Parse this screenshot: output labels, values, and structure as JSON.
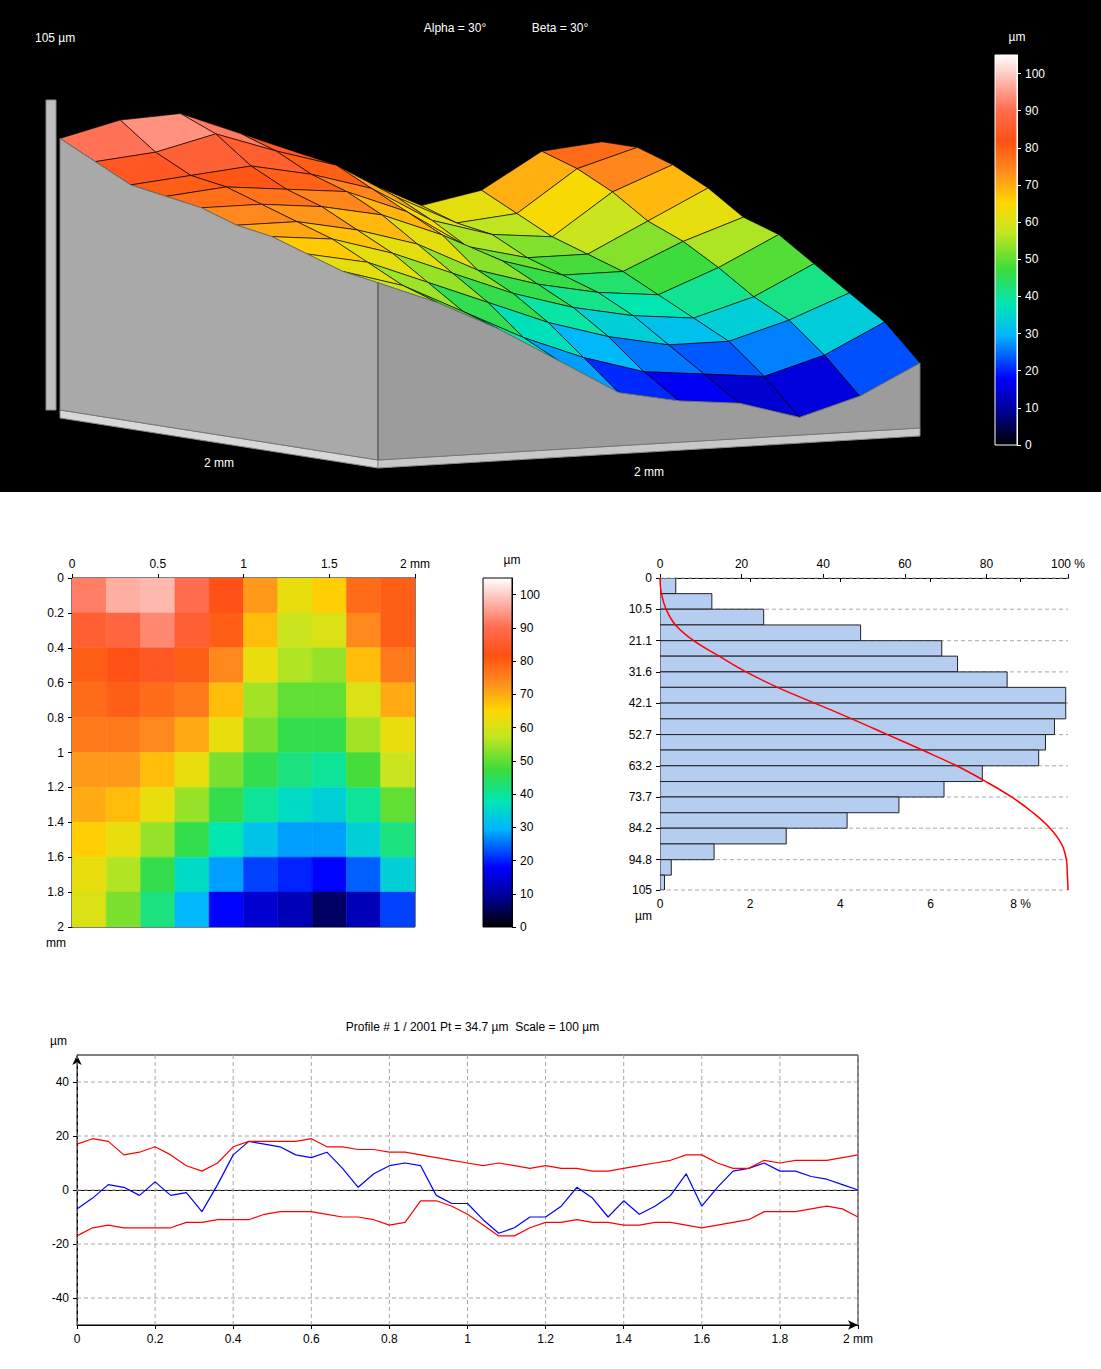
{
  "chart_data": [
    {
      "type": "surface3d",
      "annotations": [
        "Alpha = 30°",
        "Beta = 30°"
      ],
      "zlabel": "105 µm",
      "xlabel": "2 mm",
      "ylabel": "2 mm",
      "xlim": [
        0,
        2
      ],
      "ylim": [
        0,
        2
      ],
      "zlim": [
        0,
        105
      ],
      "heights": [
        [
          92,
          97,
          98,
          90,
          82,
          72,
          62,
          66,
          78,
          80
        ],
        [
          86,
          88,
          93,
          86,
          80,
          68,
          58,
          60,
          74,
          80
        ],
        [
          80,
          82,
          84,
          80,
          74,
          62,
          56,
          54,
          68,
          76
        ],
        [
          78,
          80,
          78,
          76,
          68,
          55,
          50,
          50,
          60,
          70
        ],
        [
          76,
          76,
          74,
          70,
          62,
          52,
          46,
          46,
          55,
          62
        ],
        [
          72,
          72,
          68,
          62,
          52,
          46,
          42,
          40,
          48,
          58
        ],
        [
          70,
          68,
          62,
          54,
          46,
          40,
          36,
          34,
          40,
          50
        ],
        [
          66,
          62,
          54,
          46,
          38,
          32,
          28,
          28,
          34,
          42
        ],
        [
          62,
          56,
          46,
          36,
          28,
          22,
          20,
          18,
          24,
          34
        ],
        [
          60,
          52,
          42,
          30,
          18,
          14,
          12,
          6,
          12,
          22
        ]
      ],
      "colorbar": {
        "title": "µm",
        "range": [
          0,
          105
        ],
        "ticks": [
          0,
          10,
          20,
          30,
          40,
          50,
          60,
          70,
          80,
          90,
          100
        ]
      }
    },
    {
      "type": "heatmap",
      "xlim": [
        0,
        2
      ],
      "ylim": [
        0,
        2
      ],
      "xticks": [
        0,
        0.5,
        1,
        1.5,
        {
          "value": 2,
          "label": "2 mm"
        }
      ],
      "yticks": [
        0,
        0.2,
        0.4,
        0.6,
        0.8,
        1,
        1.2,
        1.4,
        1.6,
        1.8,
        2
      ],
      "ylabel": "mm",
      "heights": [
        [
          92,
          97,
          98,
          90,
          82,
          72,
          62,
          66,
          78,
          80
        ],
        [
          86,
          88,
          93,
          86,
          80,
          68,
          58,
          60,
          74,
          80
        ],
        [
          80,
          82,
          84,
          80,
          74,
          62,
          56,
          54,
          68,
          76
        ],
        [
          78,
          80,
          78,
          76,
          68,
          55,
          50,
          50,
          60,
          70
        ],
        [
          76,
          76,
          74,
          70,
          62,
          52,
          46,
          46,
          55,
          62
        ],
        [
          72,
          72,
          68,
          62,
          52,
          46,
          42,
          40,
          48,
          58
        ],
        [
          70,
          68,
          62,
          54,
          46,
          40,
          36,
          34,
          40,
          50
        ],
        [
          66,
          62,
          54,
          46,
          38,
          32,
          28,
          28,
          34,
          42
        ],
        [
          62,
          56,
          46,
          36,
          28,
          22,
          20,
          18,
          24,
          34
        ],
        [
          60,
          52,
          42,
          30,
          18,
          14,
          12,
          6,
          12,
          22
        ]
      ],
      "colorbar": {
        "title": "µm",
        "range": [
          0,
          105
        ],
        "ticks": [
          0,
          10,
          20,
          30,
          40,
          50,
          60,
          70,
          80,
          90,
          100
        ]
      }
    },
    {
      "type": "histogram",
      "orientation": "horizontal",
      "grid": true,
      "bins": [
        0,
        5.27,
        10.5,
        15.8,
        21.1,
        26.3,
        31.6,
        36.8,
        42.1,
        47.4,
        52.7,
        57.9,
        63.2,
        68.5,
        73.7,
        79,
        84.2,
        89.5,
        94.8,
        100,
        105
      ],
      "values": [
        0.35,
        1.15,
        2.3,
        4.45,
        6.25,
        6.6,
        7.7,
        9.0,
        9.0,
        8.75,
        8.55,
        8.4,
        7.15,
        6.3,
        5.3,
        4.15,
        2.8,
        1.2,
        0.25,
        0.1
      ],
      "color": "#b4cdf0",
      "ylabel": "µm",
      "ylim": [
        0,
        105
      ],
      "yticks": [
        0,
        10.5,
        21.1,
        31.6,
        42.1,
        52.7,
        63.2,
        73.7,
        84.2,
        94.8,
        105
      ],
      "xlim": [
        0,
        9.05
      ],
      "xticks": [
        0,
        2,
        4,
        6,
        {
          "value": 8,
          "label": "8 %"
        }
      ],
      "x2lim": [
        0,
        100
      ],
      "x2ticks": [
        0,
        20,
        40,
        60,
        80,
        {
          "value": 100,
          "label": "100 %"
        }
      ],
      "cumulative": {
        "color": "#ff0000",
        "values": [
          0,
          0.35,
          1.5,
          3.8,
          8.25,
          14.5,
          21.1,
          28.8,
          37.9,
          47,
          55.75,
          64.3,
          72.7,
          79.85,
          86.15,
          91.45,
          95.6,
          98.4,
          99.6,
          99.85,
          100
        ]
      }
    },
    {
      "type": "line",
      "title": "Profile # 1 / 2001 Pt = 34.7 µm  Scale = 100 µm",
      "ylabel": "µm",
      "grid": true,
      "x": [
        0,
        0.04,
        0.08,
        0.12,
        0.16,
        0.2,
        0.24,
        0.28,
        0.32,
        0.36,
        0.4,
        0.44,
        0.48,
        0.52,
        0.56,
        0.6,
        0.64,
        0.68,
        0.72,
        0.76,
        0.8,
        0.84,
        0.88,
        0.92,
        0.96,
        1,
        1.04,
        1.08,
        1.12,
        1.16,
        1.2,
        1.24,
        1.28,
        1.32,
        1.36,
        1.4,
        1.44,
        1.48,
        1.52,
        1.56,
        1.6,
        1.64,
        1.68,
        1.72,
        1.76,
        1.8,
        1.84,
        1.88,
        1.92,
        1.96,
        2
      ],
      "xlim": [
        0,
        2
      ],
      "xticks": [
        0,
        0.2,
        0.4,
        0.6,
        0.8,
        1,
        1.2,
        1.4,
        1.6,
        1.8,
        {
          "value": 2,
          "label": "2 mm"
        }
      ],
      "ylim": [
        -50,
        50
      ],
      "yticks": [
        -40,
        -20,
        0,
        20,
        40
      ],
      "series": [
        {
          "color": "#0000ff",
          "values": [
            -7,
            -3,
            2,
            1,
            -2,
            3,
            -2,
            -1,
            -8,
            2,
            13,
            18,
            17,
            16,
            13,
            12,
            14,
            8,
            1,
            6,
            9,
            10,
            9,
            -2,
            -5,
            -5,
            -11,
            -16,
            -14,
            -10,
            -10,
            -6,
            1,
            -3,
            -10,
            -4,
            -9,
            -6,
            -2,
            6,
            -6,
            1,
            7,
            8,
            10,
            7,
            7,
            5,
            4,
            2,
            0
          ]
        },
        {
          "color": "#ff0000",
          "values": [
            17,
            19,
            18,
            13,
            14,
            16,
            13,
            9,
            7,
            10,
            16,
            18,
            18,
            18,
            18,
            19,
            16,
            16,
            15,
            15,
            14,
            14,
            13,
            12,
            11,
            10,
            9,
            10,
            9,
            8,
            9,
            8,
            8,
            7,
            7,
            8,
            9,
            10,
            11,
            13,
            13,
            10,
            8,
            8,
            11,
            10,
            11,
            11,
            11,
            12,
            13
          ]
        },
        {
          "color": "#ff0000",
          "values": [
            -17,
            -14,
            -13,
            -14,
            -14,
            -14,
            -14,
            -12,
            -12,
            -11,
            -11,
            -11,
            -9,
            -8,
            -8,
            -8,
            -9,
            -10,
            -10,
            -11,
            -13,
            -12,
            -4,
            -4,
            -6,
            -9,
            -13,
            -17,
            -17,
            -14,
            -12,
            -12,
            -11,
            -12,
            -12,
            -13,
            -13,
            -12,
            -12,
            -13,
            -14,
            -13,
            -12,
            -11,
            -8,
            -8,
            -8,
            -7,
            -6,
            -7,
            -10
          ]
        }
      ]
    }
  ]
}
